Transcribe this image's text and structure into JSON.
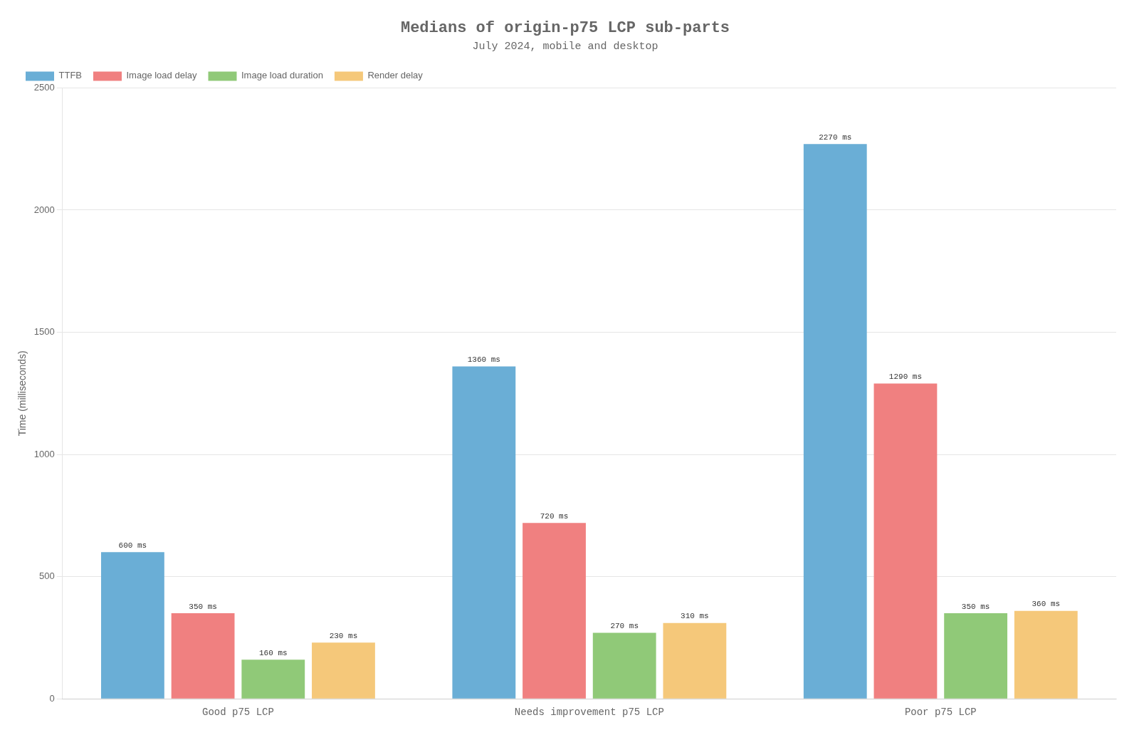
{
  "chart_data": {
    "type": "bar",
    "title": "Medians of origin-p75 LCP sub-parts",
    "subtitle": "July 2024, mobile and desktop",
    "categories": [
      "Good p75 LCP",
      "Needs improvement p75 LCP",
      "Poor p75 LCP"
    ],
    "series": [
      {
        "name": "TTFB",
        "color": "#6aaed6",
        "values": [
          600,
          1360,
          2270
        ],
        "value_labels": [
          "600 ms",
          "1360 ms",
          "2270 ms"
        ]
      },
      {
        "name": "Image load delay",
        "color": "#f08080",
        "values": [
          350,
          720,
          1290
        ],
        "value_labels": [
          "350 ms",
          "720 ms",
          "1290 ms"
        ]
      },
      {
        "name": "Image load duration",
        "color": "#90c978",
        "values": [
          160,
          270,
          350
        ],
        "value_labels": [
          "160 ms",
          "270 ms",
          "350 ms"
        ]
      },
      {
        "name": "Render delay",
        "color": "#f5c87a",
        "values": [
          230,
          310,
          360
        ],
        "value_labels": [
          "230 ms",
          "310 ms",
          "360 ms"
        ]
      }
    ],
    "ylabel": "Time (milliseconds)",
    "ylim": [
      0,
      2500
    ],
    "yticks": [
      0,
      500,
      1000,
      1500,
      2000,
      2500
    ],
    "grid": true,
    "legend": "upper left",
    "data_labels": true
  }
}
